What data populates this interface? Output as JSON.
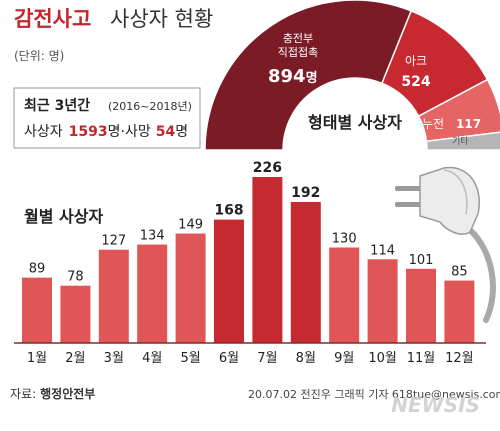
{
  "title_main": "감전사고",
  "title_sub": "사상자 현황",
  "unit": "(단위: 명)",
  "summary": {
    "heading": "최근 3년간",
    "period": "(2016~2018년)",
    "casualty_label": "사상자",
    "casualty_value": "1593",
    "unit_sep": "명·",
    "death_label": "사망",
    "death_value": "54",
    "unit_end": "명"
  },
  "type_chart": {
    "title": "형태별 사상자",
    "segments": [
      {
        "label_lines": [
          "충전부",
          "직접접촉"
        ],
        "value": "894",
        "unit": "명",
        "color": "#7a1b25"
      },
      {
        "label_lines": [
          "아크"
        ],
        "value": "524",
        "color": "#c8282f"
      },
      {
        "label_lines": [
          "누전"
        ],
        "value": "117",
        "color": "#e56464"
      },
      {
        "label_lines": [
          "기타"
        ],
        "value": "",
        "color": "#b5b5b5"
      }
    ]
  },
  "monthly_title": "월별 사상자",
  "colors": {
    "bar": "#e05555",
    "bar_highlight": "#c42a2f",
    "title_main": "#c1272d",
    "value_highlight": "#c1272d",
    "baseline": "#7d2e2e"
  },
  "chart_data": {
    "type": "bar",
    "categories": [
      "1월",
      "2월",
      "3월",
      "4월",
      "5월",
      "6월",
      "7월",
      "8월",
      "9월",
      "10월",
      "11월",
      "12월"
    ],
    "values": [
      89,
      78,
      127,
      134,
      149,
      168,
      226,
      192,
      130,
      114,
      101,
      85
    ],
    "highlight": [
      "6월",
      "7월",
      "8월"
    ],
    "title": "월별 사상자",
    "ylim": [
      0,
      250
    ]
  },
  "footer": {
    "source_label": "자료:",
    "source_name": "행정안전부",
    "credit": "20.07.02  전진우 그래픽 기자  618tue@newsis.com",
    "logo": "NEWSIS"
  }
}
